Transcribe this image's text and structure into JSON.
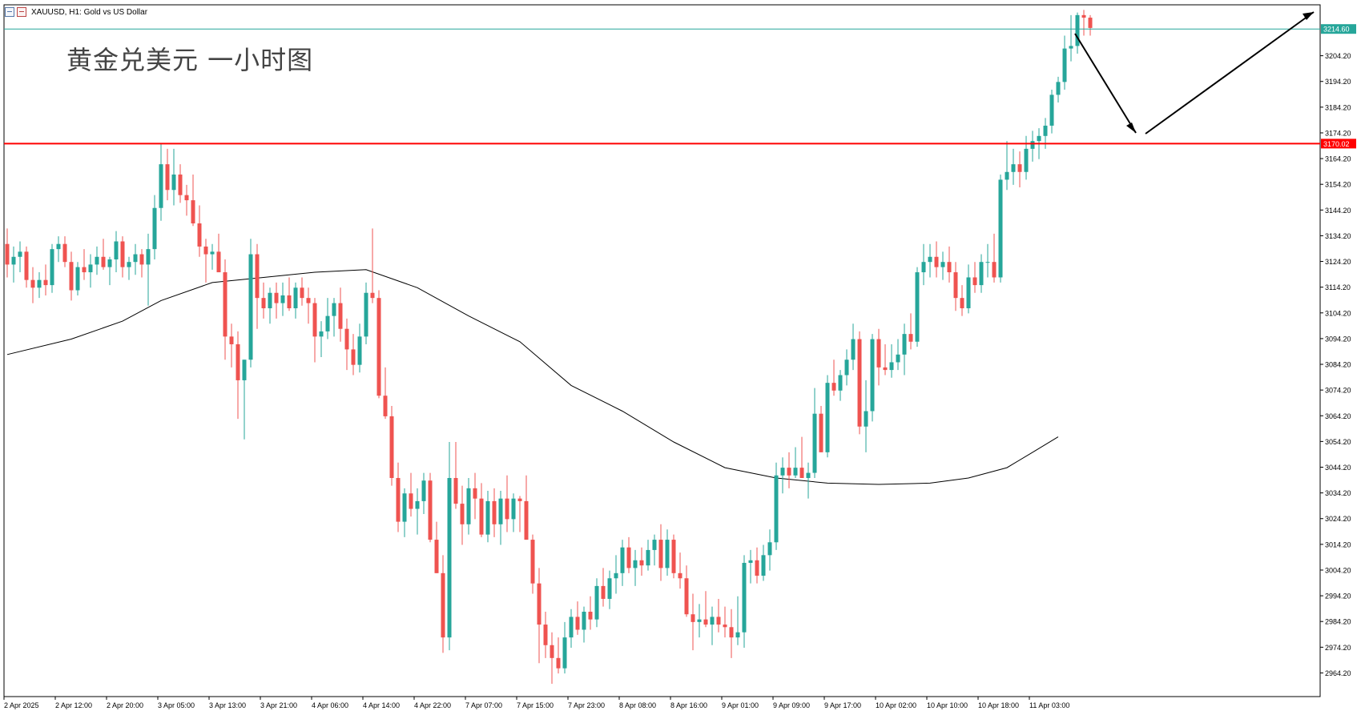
{
  "header": {
    "symbol_text": "XAUUSD, H1:  Gold vs US Dollar",
    "overlay_title": "黄金兑美元 一小时图"
  },
  "colors": {
    "bull": "#26a69a",
    "bear": "#ef5350",
    "ma": "#000000",
    "resistance": "#ff0000",
    "price_line": "#26a69a"
  },
  "chart_data": {
    "type": "candlestick",
    "symbol": "XAUUSD",
    "timeframe": "H1",
    "y_ticks": [
      "3204.20",
      "3194.20",
      "3184.20",
      "3174.20",
      "3164.20",
      "3154.20",
      "3144.20",
      "3134.20",
      "3124.20",
      "3114.20",
      "3104.20",
      "3094.20",
      "3084.20",
      "3074.20",
      "3064.20",
      "3054.20",
      "3044.20",
      "3034.20",
      "3024.20",
      "3014.20",
      "3004.20",
      "2994.20",
      "2984.20",
      "2974.20",
      "2964.20"
    ],
    "ylim": [
      2955,
      3224
    ],
    "x_tick_labels": [
      "2 Apr 2025",
      "2 Apr 12:00",
      "2 Apr 20:00",
      "3 Apr 05:00",
      "3 Apr 13:00",
      "3 Apr 21:00",
      "4 Apr 06:00",
      "4 Apr 14:00",
      "4 Apr 22:00",
      "7 Apr 07:00",
      "7 Apr 15:00",
      "7 Apr 23:00",
      "8 Apr 08:00",
      "8 Apr 16:00",
      "9 Apr 01:00",
      "9 Apr 09:00",
      "9 Apr 17:00",
      "10 Apr 02:00",
      "10 Apr 10:00",
      "10 Apr 18:00",
      "11 Apr 03:00"
    ],
    "x_tick_positions": [
      0,
      8,
      16,
      24,
      32,
      40,
      48,
      56,
      64,
      72,
      80,
      88,
      96,
      104,
      112,
      120,
      128,
      136,
      144,
      152,
      160
    ],
    "current_price": {
      "label": "3214.60",
      "value": 3214.6
    },
    "resistance_level": {
      "label": "3170.02",
      "value": 3170.02
    },
    "moving_average": [
      [
        0,
        3088
      ],
      [
        10,
        3094
      ],
      [
        18,
        3101
      ],
      [
        24,
        3109
      ],
      [
        32,
        3116
      ],
      [
        40,
        3118
      ],
      [
        48,
        3120
      ],
      [
        56,
        3121
      ],
      [
        64,
        3114
      ],
      [
        72,
        3103
      ],
      [
        80,
        3093
      ],
      [
        88,
        3076
      ],
      [
        96,
        3066
      ],
      [
        104,
        3054
      ],
      [
        112,
        3044
      ],
      [
        120,
        3040
      ],
      [
        128,
        3038
      ],
      [
        136,
        3037.5
      ],
      [
        144,
        3038
      ],
      [
        150,
        3040
      ],
      [
        156,
        3044
      ],
      [
        160,
        3050
      ],
      [
        164,
        3056
      ]
    ],
    "candles": [
      [
        3131,
        3137,
        3118,
        3123
      ],
      [
        3123,
        3130,
        3116,
        3126
      ],
      [
        3126,
        3132,
        3120,
        3128
      ],
      [
        3128,
        3130,
        3114,
        3117
      ],
      [
        3117,
        3122,
        3108,
        3114
      ],
      [
        3114,
        3120,
        3110,
        3117
      ],
      [
        3117,
        3123,
        3111,
        3115
      ],
      [
        3115,
        3131,
        3112,
        3129
      ],
      [
        3129,
        3134,
        3124,
        3131
      ],
      [
        3131,
        3134,
        3122,
        3124
      ],
      [
        3124,
        3128,
        3109,
        3113
      ],
      [
        3113,
        3124,
        3111,
        3122
      ],
      [
        3122,
        3129,
        3117,
        3120
      ],
      [
        3120,
        3127,
        3114,
        3123
      ],
      [
        3123,
        3130,
        3119,
        3126
      ],
      [
        3126,
        3133,
        3121,
        3122
      ],
      [
        3122,
        3126,
        3115,
        3125
      ],
      [
        3125,
        3136,
        3120,
        3132
      ],
      [
        3132,
        3134,
        3118,
        3122
      ],
      [
        3122,
        3126,
        3117,
        3124
      ],
      [
        3124,
        3131,
        3119,
        3127
      ],
      [
        3127,
        3129,
        3118,
        3123
      ],
      [
        3123,
        3135,
        3107,
        3129
      ],
      [
        3129,
        3150,
        3125,
        3145
      ],
      [
        3145,
        3170,
        3140,
        3162
      ],
      [
        3162,
        3168,
        3148,
        3152
      ],
      [
        3152,
        3168,
        3146,
        3158
      ],
      [
        3158,
        3162,
        3147,
        3150
      ],
      [
        3150,
        3154,
        3142,
        3148
      ],
      [
        3148,
        3158,
        3138,
        3139
      ],
      [
        3139,
        3146,
        3126,
        3130
      ],
      [
        3130,
        3133,
        3116,
        3127
      ],
      [
        3127,
        3131,
        3121,
        3128
      ],
      [
        3128,
        3135,
        3122,
        3120
      ],
      [
        3120,
        3125,
        3086,
        3095
      ],
      [
        3095,
        3100,
        3083,
        3092
      ],
      [
        3092,
        3097,
        3063,
        3078
      ],
      [
        3078,
        3086,
        3055,
        3086
      ],
      [
        3086,
        3133,
        3083,
        3127
      ],
      [
        3127,
        3131,
        3098,
        3110
      ],
      [
        3110,
        3116,
        3102,
        3106
      ],
      [
        3106,
        3114,
        3100,
        3112
      ],
      [
        3112,
        3116,
        3102,
        3108
      ],
      [
        3108,
        3116,
        3103,
        3111
      ],
      [
        3111,
        3118,
        3105,
        3106
      ],
      [
        3106,
        3116,
        3102,
        3114
      ],
      [
        3114,
        3118,
        3107,
        3110
      ],
      [
        3110,
        3114,
        3100,
        3108
      ],
      [
        3108,
        3110,
        3085,
        3095
      ],
      [
        3095,
        3101,
        3087,
        3097
      ],
      [
        3097,
        3110,
        3094,
        3103
      ],
      [
        3103,
        3110,
        3095,
        3108
      ],
      [
        3108,
        3114,
        3093,
        3098
      ],
      [
        3098,
        3102,
        3082,
        3090
      ],
      [
        3090,
        3096,
        3080,
        3084
      ],
      [
        3084,
        3100,
        3081,
        3095
      ],
      [
        3095,
        3116,
        3092,
        3112
      ],
      [
        3112,
        3137,
        3108,
        3110
      ],
      [
        3110,
        3113,
        3071,
        3072
      ],
      [
        3072,
        3083,
        3063,
        3064
      ],
      [
        3064,
        3068,
        3037,
        3040
      ],
      [
        3040,
        3046,
        3019,
        3023
      ],
      [
        3023,
        3036,
        3017,
        3034
      ],
      [
        3034,
        3042,
        3025,
        3028
      ],
      [
        3028,
        3036,
        3018,
        3031
      ],
      [
        3031,
        3042,
        3026,
        3039
      ],
      [
        3039,
        3042,
        3015,
        3016
      ],
      [
        3016,
        3023,
        3003,
        3003
      ],
      [
        3003,
        3010,
        2972,
        2978
      ],
      [
        2978,
        3054,
        2973,
        3040
      ],
      [
        3040,
        3054,
        3028,
        3030
      ],
      [
        3030,
        3037,
        3014,
        3022
      ],
      [
        3022,
        3040,
        3018,
        3036
      ],
      [
        3036,
        3042,
        3024,
        3032
      ],
      [
        3032,
        3038,
        3017,
        3018
      ],
      [
        3018,
        3035,
        3015,
        3031
      ],
      [
        3031,
        3036,
        3017,
        3022
      ],
      [
        3022,
        3035,
        3014,
        3032
      ],
      [
        3032,
        3041,
        3019,
        3024
      ],
      [
        3024,
        3034,
        3019,
        3032
      ],
      [
        3032,
        3033,
        3019,
        3031
      ],
      [
        3031,
        3041,
        3016,
        3016
      ],
      [
        3016,
        3018,
        2995,
        2999
      ],
      [
        2999,
        3005,
        2968,
        2983
      ],
      [
        2983,
        2988,
        2970,
        2975
      ],
      [
        2975,
        2980,
        2960,
        2970
      ],
      [
        2970,
        2978,
        2964,
        2966
      ],
      [
        2966,
        2984,
        2964,
        2978
      ],
      [
        2978,
        2989,
        2974,
        2986
      ],
      [
        2986,
        2992,
        2979,
        2981
      ],
      [
        2981,
        2990,
        2976,
        2988
      ],
      [
        2988,
        2994,
        2981,
        2985
      ],
      [
        2985,
        3001,
        2982,
        2998
      ],
      [
        2998,
        3005,
        2990,
        2993
      ],
      [
        2993,
        3004,
        2989,
        3001
      ],
      [
        3001,
        3010,
        2995,
        3003
      ],
      [
        3003,
        3016,
        2998,
        3013
      ],
      [
        3013,
        3017,
        3003,
        3005
      ],
      [
        3005,
        3012,
        2998,
        3008
      ],
      [
        3008,
        3013,
        3002,
        3006
      ],
      [
        3006,
        3016,
        3004,
        3012
      ],
      [
        3012,
        3018,
        3006,
        3016
      ],
      [
        3016,
        3022,
        3000,
        3005
      ],
      [
        3005,
        3020,
        3002,
        3016
      ],
      [
        3016,
        3018,
        3001,
        3003
      ],
      [
        3003,
        3011,
        2997,
        3001
      ],
      [
        3001,
        3006,
        2986,
        2987
      ],
      [
        2987,
        2995,
        2973,
        2984
      ],
      [
        2984,
        2991,
        2978,
        2985
      ],
      [
        2985,
        2996,
        2982,
        2983
      ],
      [
        2983,
        2990,
        2975,
        2986
      ],
      [
        2986,
        2993,
        2980,
        2983
      ],
      [
        2983,
        2990,
        2978,
        2982
      ],
      [
        2982,
        2989,
        2970,
        2978
      ],
      [
        2978,
        2994,
        2975,
        2980
      ],
      [
        2980,
        3010,
        2974,
        3007
      ],
      [
        3007,
        3012,
        2999,
        3008
      ],
      [
        3008,
        3013,
        2999,
        3002
      ],
      [
        3002,
        3014,
        3000,
        3010
      ],
      [
        3010,
        3020,
        3004,
        3015
      ],
      [
        3015,
        3046,
        3012,
        3041
      ],
      [
        3041,
        3048,
        3034,
        3044
      ],
      [
        3044,
        3050,
        3036,
        3041
      ],
      [
        3041,
        3052,
        3040,
        3044
      ],
      [
        3044,
        3056,
        3040,
        3040
      ],
      [
        3040,
        3046,
        3032,
        3042
      ],
      [
        3042,
        3075,
        3040,
        3065
      ],
      [
        3065,
        3068,
        3050,
        3050
      ],
      [
        3050,
        3080,
        3048,
        3077
      ],
      [
        3077,
        3086,
        3072,
        3074
      ],
      [
        3074,
        3082,
        3070,
        3080
      ],
      [
        3080,
        3090,
        3076,
        3086
      ],
      [
        3086,
        3100,
        3082,
        3094
      ],
      [
        3094,
        3097,
        3057,
        3060
      ],
      [
        3060,
        3078,
        3050,
        3066
      ],
      [
        3066,
        3096,
        3062,
        3094
      ],
      [
        3094,
        3098,
        3076,
        3083
      ],
      [
        3083,
        3092,
        3080,
        3082
      ],
      [
        3082,
        3092,
        3079,
        3085
      ],
      [
        3085,
        3094,
        3082,
        3088
      ],
      [
        3088,
        3100,
        3080,
        3096
      ],
      [
        3096,
        3104,
        3090,
        3093
      ],
      [
        3093,
        3122,
        3091,
        3120
      ],
      [
        3120,
        3131,
        3115,
        3124
      ],
      [
        3124,
        3131,
        3118,
        3126
      ],
      [
        3126,
        3132,
        3118,
        3122
      ],
      [
        3122,
        3128,
        3117,
        3124
      ],
      [
        3124,
        3130,
        3116,
        3120
      ],
      [
        3120,
        3124,
        3105,
        3110
      ],
      [
        3110,
        3115,
        3103,
        3106
      ],
      [
        3106,
        3123,
        3104,
        3118
      ],
      [
        3118,
        3124,
        3112,
        3115
      ],
      [
        3115,
        3127,
        3112,
        3124
      ],
      [
        3124,
        3131,
        3118,
        3124
      ],
      [
        3124,
        3135,
        3116,
        3118
      ],
      [
        3118,
        3158,
        3116,
        3156
      ],
      [
        3156,
        3171,
        3152,
        3159
      ],
      [
        3159,
        3168,
        3154,
        3162
      ],
      [
        3162,
        3167,
        3153,
        3159
      ],
      [
        3159,
        3173,
        3156,
        3168
      ],
      [
        3168,
        3175,
        3163,
        3171
      ],
      [
        3171,
        3176,
        3164,
        3173
      ],
      [
        3173,
        3180,
        3168,
        3177
      ],
      [
        3177,
        3191,
        3174,
        3189
      ],
      [
        3189,
        3196,
        3186,
        3194
      ],
      [
        3194,
        3212,
        3191,
        3207
      ],
      [
        3207,
        3220,
        3202,
        3208
      ],
      [
        3208,
        3221,
        3205,
        3220
      ],
      [
        3220,
        3222,
        3212,
        3219
      ],
      [
        3219,
        3220,
        3212,
        3215
      ]
    ]
  }
}
